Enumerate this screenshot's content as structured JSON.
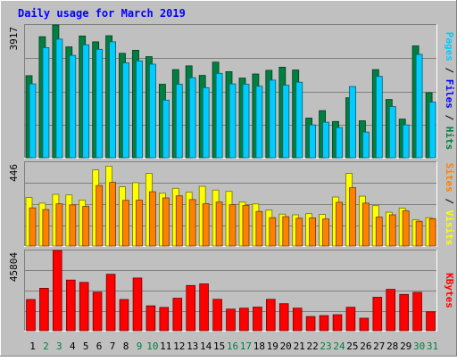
{
  "chart_data": {
    "type": "bar",
    "title": "Daily usage for March 2019",
    "categories": [
      "1",
      "2",
      "3",
      "4",
      "5",
      "6",
      "7",
      "8",
      "9",
      "10",
      "11",
      "12",
      "13",
      "14",
      "15",
      "16",
      "17",
      "18",
      "19",
      "20",
      "21",
      "22",
      "23",
      "24",
      "25",
      "26",
      "27",
      "28",
      "29",
      "30",
      "31"
    ],
    "weekend_days": [
      "2",
      "3",
      "9",
      "10",
      "16",
      "17",
      "23",
      "24",
      "30",
      "31"
    ],
    "panels": [
      {
        "name": "hits-files-pages",
        "axis_max_label": "3917",
        "ylim": [
          0,
          3917
        ],
        "grid": true,
        "side_legend": [
          {
            "text": "Pages",
            "color": "#00ccff"
          },
          {
            "text": " / ",
            "color": "#000000"
          },
          {
            "text": "Files",
            "color": "#0000ff"
          },
          {
            "text": " / ",
            "color": "#000000"
          },
          {
            "text": "Hits",
            "color": "#008040"
          }
        ],
        "series": [
          {
            "color": "#008040",
            "values": [
              2420,
              3570,
              3917,
              3270,
              3590,
              3420,
              3600,
              3080,
              3170,
              2980,
              2170,
              2600,
              2710,
              2430,
              2820,
              2540,
              2350,
              2470,
              2580,
              2670,
              2590,
              1170,
              1390,
              1070,
              1770,
              1090,
              2600,
              1720,
              1140,
              3300,
              1920
            ]
          },
          {
            "color": "#00ccff",
            "values": [
              2180,
              3250,
              3500,
              3020,
              3330,
              3200,
              3420,
              2800,
              2860,
              2760,
              1700,
              2170,
              2360,
              2070,
              2490,
              2180,
              2170,
              2110,
              2290,
              2140,
              2230,
              970,
              1050,
              890,
              2100,
              760,
              2400,
              1510,
              970,
              3050,
              1640
            ]
          }
        ]
      },
      {
        "name": "visits-sites",
        "axis_max_label": "446",
        "ylim": [
          0,
          446
        ],
        "grid": true,
        "side_legend": [
          {
            "text": "Sites",
            "color": "#ff8000"
          },
          {
            "text": " / ",
            "color": "#000000"
          },
          {
            "text": "Visits",
            "color": "#ffff00"
          }
        ],
        "series": [
          {
            "color": "#ffff00",
            "values": [
              258,
              228,
              275,
              272,
              245,
              405,
              425,
              315,
              337,
              386,
              281,
              307,
              286,
              318,
              298,
              291,
              234,
              224,
              191,
              170,
              166,
              172,
              168,
              261,
              386,
              265,
              215,
              180,
              202,
              140,
              151
            ]
          },
          {
            "color": "#ff8000",
            "values": [
              203,
              194,
              225,
              219,
              211,
              322,
              339,
              243,
              244,
              289,
              256,
              267,
              247,
              225,
              234,
              220,
              216,
              184,
              151,
              156,
              148,
              150,
              144,
              233,
              311,
              228,
              154,
              166,
              187,
              132,
              145
            ]
          }
        ]
      },
      {
        "name": "kbytes",
        "axis_max_label": "45804",
        "ylim": [
          0,
          45804
        ],
        "grid": true,
        "side_legend": [
          {
            "text": "KBytes",
            "color": "#ff0000"
          }
        ],
        "series": [
          {
            "color": "#ff0000",
            "values": [
              17800,
              24200,
              45804,
              28900,
              27600,
              22000,
              32200,
              17800,
              30100,
              14200,
              13300,
              18500,
              25800,
              26700,
              17900,
              12300,
              12900,
              13500,
              17900,
              15400,
              12900,
              8100,
              8600,
              9100,
              13400,
              7100,
              19100,
              23600,
              20700,
              21900,
              10800
            ]
          }
        ]
      }
    ]
  }
}
